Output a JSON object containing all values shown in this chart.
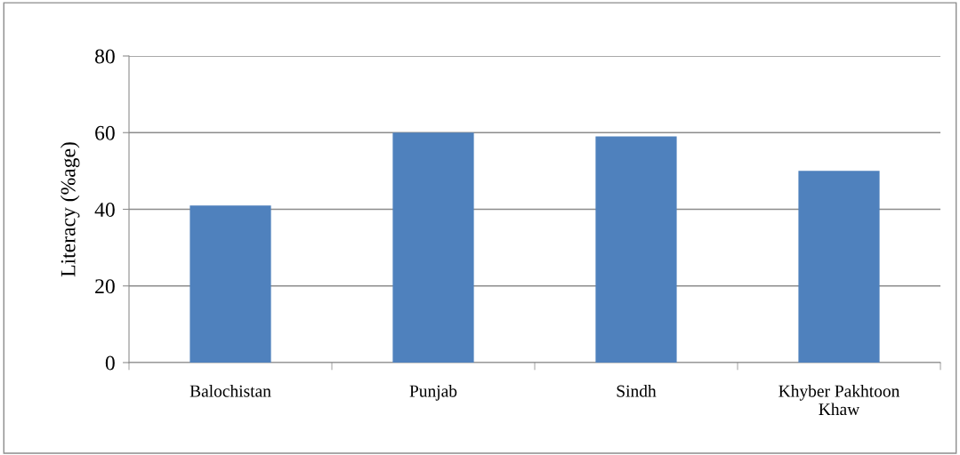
{
  "chart_data": {
    "type": "bar",
    "ylabel": "Literacy (%age)",
    "categories": [
      "Balochistan",
      "Punjab",
      "Sindh",
      "Khyber Pakhtoon\nKhaw"
    ],
    "values": [
      41,
      60,
      59,
      50
    ],
    "color": "#4f81bd",
    "ylim": [
      0,
      80
    ],
    "yticks": [
      0,
      20,
      40,
      60,
      80
    ],
    "grid": "y",
    "legend": false
  }
}
